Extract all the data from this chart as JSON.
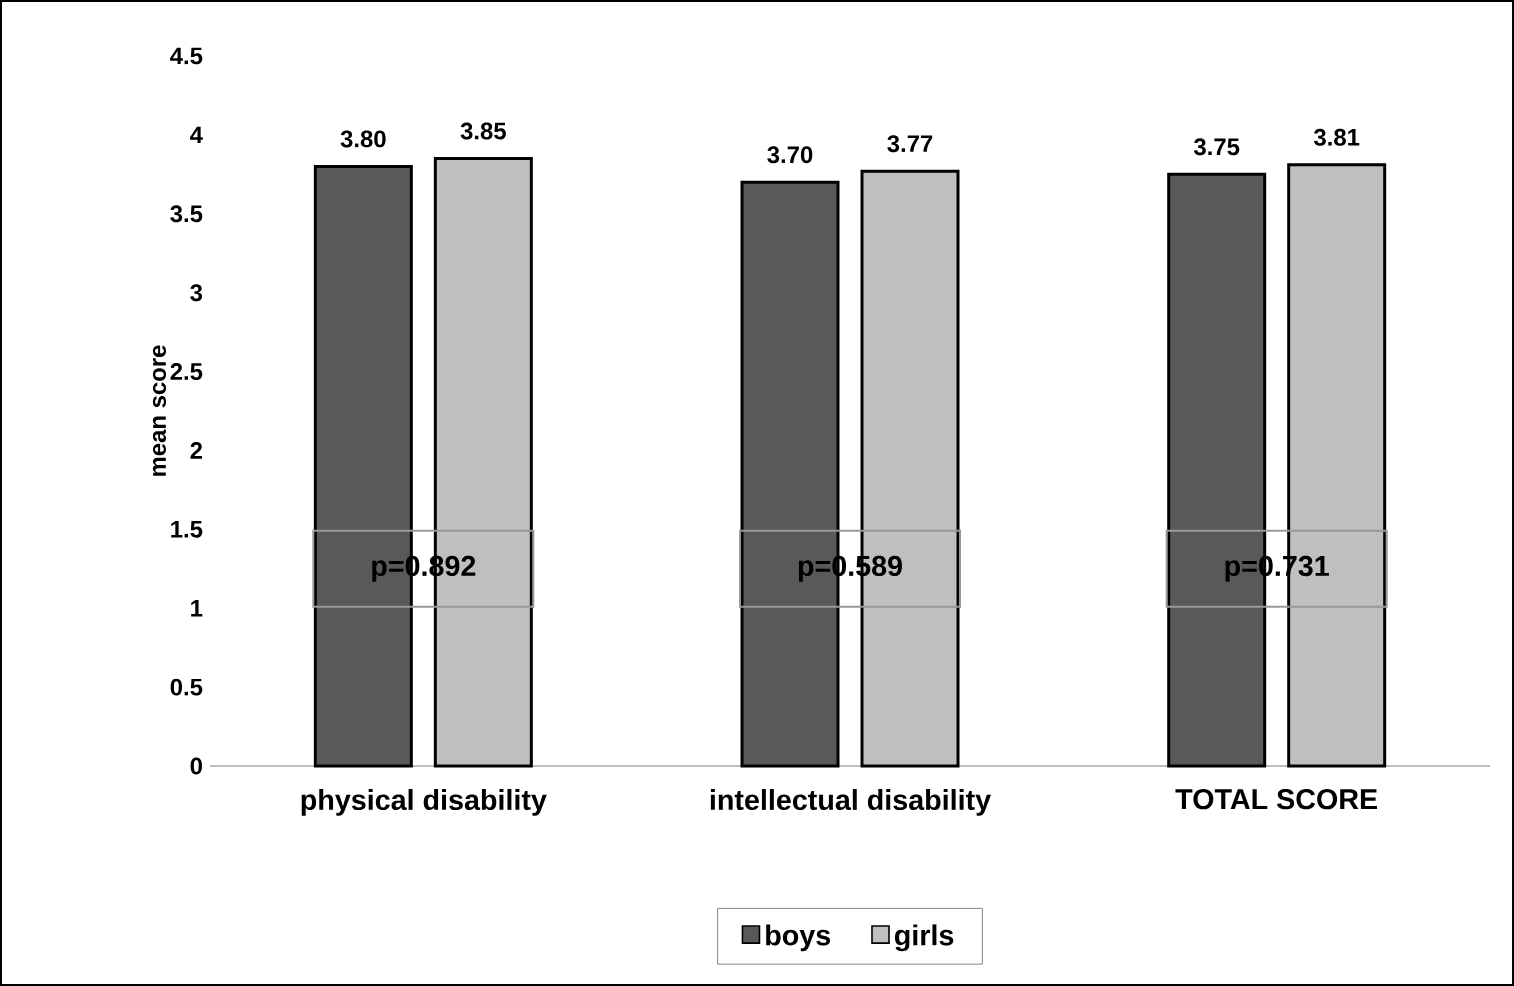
{
  "chart_data": {
    "type": "bar",
    "ylabel": "mean score",
    "categories": [
      "physical disability",
      "intellectual disability",
      "TOTAL SCORE"
    ],
    "series": [
      {
        "name": "boys",
        "color": "#595959",
        "values": [
          3.8,
          3.7,
          3.75
        ],
        "value_labels": [
          "3.80",
          "3.70",
          "3.75"
        ]
      },
      {
        "name": "girls",
        "color": "#bfbfbf",
        "values": [
          3.85,
          3.77,
          3.81
        ],
        "value_labels": [
          "3.85",
          "3.77",
          "3.81"
        ]
      }
    ],
    "ylim": [
      0,
      4.5
    ],
    "yticks": [
      0,
      0.5,
      1,
      1.5,
      2,
      2.5,
      3,
      3.5,
      4,
      4.5
    ],
    "annotations": [
      "p=0.892",
      "p=0.589",
      "p=0.731"
    ],
    "grid": false,
    "legend": "bottom"
  }
}
